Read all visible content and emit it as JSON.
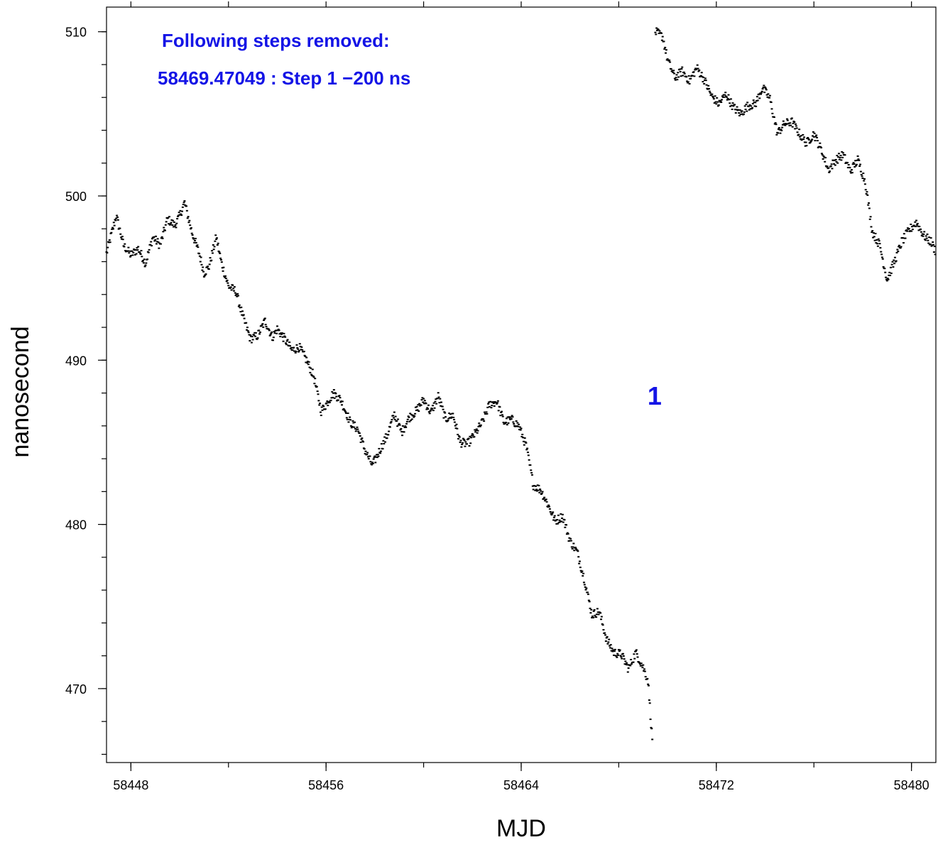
{
  "chart_data": {
    "type": "scatter",
    "title": "",
    "xlabel": "MJD",
    "ylabel": "nanosecond",
    "xlim": [
      58447.0,
      58481.0
    ],
    "ylim": [
      465.5,
      511.5
    ],
    "x_ticks": [
      58448,
      58456,
      58464,
      58472,
      58480
    ],
    "x_tick_labels": [
      "58448",
      "58456",
      "58464",
      "58472",
      "58480"
    ],
    "x_minor_ticks": [
      58448,
      58452,
      58456,
      58460,
      58464,
      58468,
      58472,
      58476,
      58480
    ],
    "y_ticks": [
      470,
      480,
      490,
      500,
      510
    ],
    "y_tick_labels": [
      "470",
      "480",
      "490",
      "500",
      "510"
    ],
    "y_minor_step": 2,
    "grid": false,
    "point_color": "#000000",
    "annotation_color": "#1414e6",
    "annotations": {
      "header": "Following steps removed:",
      "step_line": "58469.47049 : Step 1 −200 ns",
      "step_marker": "1",
      "step_marker_x": 58469.47
    },
    "series": [
      {
        "anchors": [
          [
            58447.0,
            496.5
          ],
          [
            58447.4,
            498.8
          ],
          [
            58447.7,
            497.0
          ],
          [
            58448.0,
            496.4
          ],
          [
            58448.3,
            496.8
          ],
          [
            58448.6,
            495.9
          ],
          [
            58448.9,
            497.5
          ],
          [
            58449.2,
            497.0
          ],
          [
            58449.5,
            498.6
          ],
          [
            58449.8,
            498.2
          ],
          [
            58450.0,
            498.8
          ],
          [
            58450.2,
            499.6
          ],
          [
            58450.5,
            497.8
          ],
          [
            58450.8,
            496.5
          ],
          [
            58451.0,
            495.3
          ],
          [
            58451.2,
            495.7
          ],
          [
            58451.5,
            497.5
          ],
          [
            58451.7,
            496.0
          ],
          [
            58452.0,
            494.5
          ],
          [
            58452.3,
            494.2
          ],
          [
            58452.6,
            492.6
          ],
          [
            58452.9,
            491.3
          ],
          [
            58453.2,
            491.5
          ],
          [
            58453.5,
            492.4
          ],
          [
            58453.8,
            491.4
          ],
          [
            58454.0,
            491.9
          ],
          [
            58454.3,
            491.3
          ],
          [
            58454.6,
            490.6
          ],
          [
            58454.9,
            490.8
          ],
          [
            58455.2,
            490.0
          ],
          [
            58455.5,
            489.0
          ],
          [
            58455.8,
            486.9
          ],
          [
            58456.0,
            487.3
          ],
          [
            58456.3,
            488.0
          ],
          [
            58456.6,
            487.6
          ],
          [
            58457.0,
            486.2
          ],
          [
            58457.3,
            485.8
          ],
          [
            58457.6,
            484.5
          ],
          [
            58457.9,
            483.6
          ],
          [
            58458.2,
            484.5
          ],
          [
            58458.5,
            485.4
          ],
          [
            58458.8,
            486.7
          ],
          [
            58459.1,
            485.6
          ],
          [
            58459.4,
            486.5
          ],
          [
            58459.7,
            486.9
          ],
          [
            58460.0,
            487.6
          ],
          [
            58460.3,
            486.8
          ],
          [
            58460.6,
            487.8
          ],
          [
            58460.9,
            486.4
          ],
          [
            58461.2,
            486.7
          ],
          [
            58461.5,
            485.0
          ],
          [
            58461.8,
            484.9
          ],
          [
            58462.1,
            485.5
          ],
          [
            58462.4,
            486.2
          ],
          [
            58462.7,
            487.3
          ],
          [
            58463.0,
            487.5
          ],
          [
            58463.3,
            486.2
          ],
          [
            58463.6,
            486.4
          ],
          [
            58463.9,
            486.0
          ],
          [
            58464.2,
            484.8
          ],
          [
            58464.5,
            482.4
          ],
          [
            58464.8,
            482.1
          ],
          [
            58465.1,
            481.2
          ],
          [
            58465.4,
            480.2
          ],
          [
            58465.7,
            480.5
          ],
          [
            58466.0,
            479.0
          ],
          [
            58466.3,
            478.3
          ],
          [
            58466.6,
            476.6
          ],
          [
            58466.9,
            474.5
          ],
          [
            58467.2,
            474.7
          ],
          [
            58467.5,
            473.0
          ],
          [
            58467.8,
            472.2
          ],
          [
            58468.1,
            472.1
          ],
          [
            58468.4,
            471.2
          ],
          [
            58468.7,
            472.2
          ],
          [
            58469.0,
            471.3
          ],
          [
            58469.2,
            470.5
          ],
          [
            58469.4,
            466.3
          ]
        ]
      },
      {
        "anchors": [
          [
            58469.5,
            510.0
          ],
          [
            58469.8,
            509.7
          ],
          [
            58470.0,
            508.3
          ],
          [
            58470.3,
            507.2
          ],
          [
            58470.6,
            507.6
          ],
          [
            58470.9,
            507.0
          ],
          [
            58471.2,
            507.8
          ],
          [
            58471.5,
            507.1
          ],
          [
            58471.8,
            506.1
          ],
          [
            58472.1,
            505.6
          ],
          [
            58472.4,
            506.2
          ],
          [
            58472.7,
            505.4
          ],
          [
            58473.0,
            505.0
          ],
          [
            58473.3,
            505.5
          ],
          [
            58473.6,
            505.6
          ],
          [
            58473.9,
            506.6
          ],
          [
            58474.2,
            505.9
          ],
          [
            58474.5,
            503.8
          ],
          [
            58474.8,
            504.4
          ],
          [
            58475.1,
            504.5
          ],
          [
            58475.4,
            503.8
          ],
          [
            58475.7,
            503.2
          ],
          [
            58476.0,
            503.8
          ],
          [
            58476.3,
            502.8
          ],
          [
            58476.6,
            501.6
          ],
          [
            58476.9,
            502.2
          ],
          [
            58477.2,
            502.5
          ],
          [
            58477.5,
            501.5
          ],
          [
            58477.8,
            502.2
          ],
          [
            58478.1,
            500.9
          ],
          [
            58478.4,
            497.8
          ],
          [
            58478.7,
            497.0
          ],
          [
            58479.0,
            494.9
          ],
          [
            58479.3,
            496.0
          ],
          [
            58479.6,
            497.2
          ],
          [
            58479.9,
            497.9
          ],
          [
            58480.2,
            498.4
          ],
          [
            58480.5,
            497.6
          ],
          [
            58480.8,
            497.2
          ],
          [
            58481.0,
            496.6
          ]
        ]
      }
    ]
  }
}
